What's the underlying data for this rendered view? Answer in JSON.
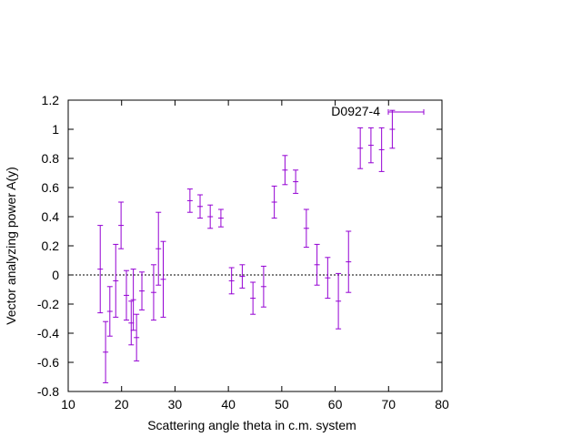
{
  "chart_data": {
    "type": "scatter",
    "xlabel": "Scattering angle theta in c.m. system",
    "ylabel": "Vector analyzing power A(y)",
    "xlim": [
      10,
      80
    ],
    "ylim": [
      -0.8,
      1.2
    ],
    "xticks": [
      10,
      20,
      30,
      40,
      50,
      60,
      70,
      80
    ],
    "yticks": [
      -0.8,
      -0.6,
      -0.4,
      -0.2,
      0,
      0.2,
      0.4,
      0.6,
      0.8,
      1,
      1.2
    ],
    "xtick_labels": [
      "10",
      "20",
      "30",
      "40",
      "50",
      "60",
      "70",
      "80"
    ],
    "ytick_labels": [
      "-0.8",
      "-0.6",
      "-0.4",
      "-0.2",
      "0",
      "0.2",
      "0.4",
      "0.6",
      "0.8",
      "1",
      "1.2"
    ],
    "reference_line": {
      "y": 0,
      "style": "dotted"
    },
    "legend_position": "top-right",
    "grid": false,
    "series": [
      {
        "name": "D0927-4",
        "color": "#9400d3",
        "points": [
          {
            "x": 16.0,
            "y": 0.04,
            "yerr": 0.3
          },
          {
            "x": 17.0,
            "y": -0.53,
            "yerr": 0.21
          },
          {
            "x": 17.8,
            "y": -0.25,
            "yerr": 0.17
          },
          {
            "x": 18.9,
            "y": -0.04,
            "yerr": 0.25
          },
          {
            "x": 19.9,
            "y": 0.34,
            "yerr": 0.16
          },
          {
            "x": 20.9,
            "y": -0.14,
            "yerr": 0.17
          },
          {
            "x": 21.8,
            "y": -0.33,
            "yerr": 0.15
          },
          {
            "x": 22.2,
            "y": -0.17,
            "yerr": 0.21
          },
          {
            "x": 22.8,
            "y": -0.43,
            "yerr": 0.16
          },
          {
            "x": 23.8,
            "y": -0.11,
            "yerr": 0.13
          },
          {
            "x": 26.0,
            "y": -0.12,
            "yerr": 0.19
          },
          {
            "x": 26.9,
            "y": 0.18,
            "yerr": 0.25
          },
          {
            "x": 27.8,
            "y": -0.03,
            "yerr": 0.26
          },
          {
            "x": 32.8,
            "y": 0.51,
            "yerr": 0.08
          },
          {
            "x": 34.7,
            "y": 0.47,
            "yerr": 0.08
          },
          {
            "x": 36.6,
            "y": 0.4,
            "yerr": 0.08
          },
          {
            "x": 38.6,
            "y": 0.39,
            "yerr": 0.06
          },
          {
            "x": 40.6,
            "y": -0.04,
            "yerr": 0.09
          },
          {
            "x": 42.6,
            "y": -0.01,
            "yerr": 0.08
          },
          {
            "x": 44.6,
            "y": -0.16,
            "yerr": 0.11
          },
          {
            "x": 46.6,
            "y": -0.08,
            "yerr": 0.14
          },
          {
            "x": 48.6,
            "y": 0.5,
            "yerr": 0.11
          },
          {
            "x": 50.6,
            "y": 0.72,
            "yerr": 0.1
          },
          {
            "x": 52.6,
            "y": 0.64,
            "yerr": 0.08
          },
          {
            "x": 54.6,
            "y": 0.32,
            "yerr": 0.13
          },
          {
            "x": 56.6,
            "y": 0.07,
            "yerr": 0.14
          },
          {
            "x": 58.6,
            "y": -0.02,
            "yerr": 0.14
          },
          {
            "x": 60.6,
            "y": -0.18,
            "yerr": 0.19
          },
          {
            "x": 62.5,
            "y": 0.09,
            "yerr": 0.21
          },
          {
            "x": 64.7,
            "y": 0.87,
            "yerr": 0.14
          },
          {
            "x": 66.7,
            "y": 0.89,
            "yerr": 0.12
          },
          {
            "x": 68.7,
            "y": 0.86,
            "yerr": 0.15
          },
          {
            "x": 70.7,
            "y": 1.0,
            "yerr": 0.13
          }
        ]
      }
    ]
  }
}
